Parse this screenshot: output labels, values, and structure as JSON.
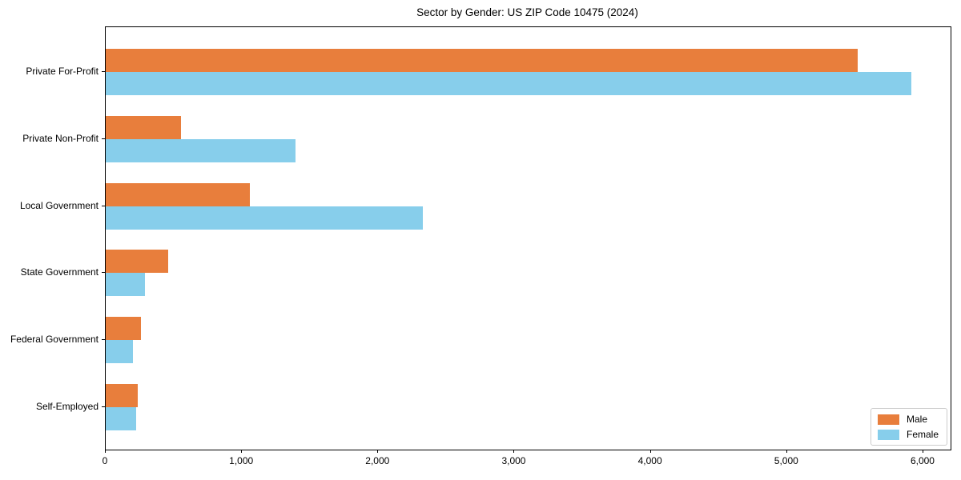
{
  "chart_data": {
    "type": "bar",
    "orientation": "horizontal",
    "title": "Sector by Gender: US ZIP Code 10475 (2024)",
    "categories": [
      "Private For-Profit",
      "Private Non-Profit",
      "Local Government",
      "State Government",
      "Federal Government",
      "Self-Employed"
    ],
    "series": [
      {
        "name": "Male",
        "color": "#E87E3C",
        "values": [
          5520,
          555,
          1055,
          460,
          260,
          235
        ]
      },
      {
        "name": "Female",
        "color": "#87CEEB",
        "values": [
          5910,
          1390,
          2330,
          290,
          200,
          225
        ]
      }
    ],
    "xlabel": "",
    "ylabel": "",
    "xlim": [
      0,
      6200
    ],
    "xticks": [
      0,
      1000,
      2000,
      3000,
      4000,
      5000,
      6000
    ],
    "xtick_labels": [
      "0",
      "1,000",
      "2,000",
      "3,000",
      "4,000",
      "5,000",
      "6,000"
    ],
    "grid": false,
    "legend": {
      "position": "lower right",
      "entries": [
        "Male",
        "Female"
      ]
    },
    "colors": {
      "male": "#E87E3C",
      "female": "#87CEEB",
      "axis": "#000000",
      "background": "#ffffff"
    }
  }
}
